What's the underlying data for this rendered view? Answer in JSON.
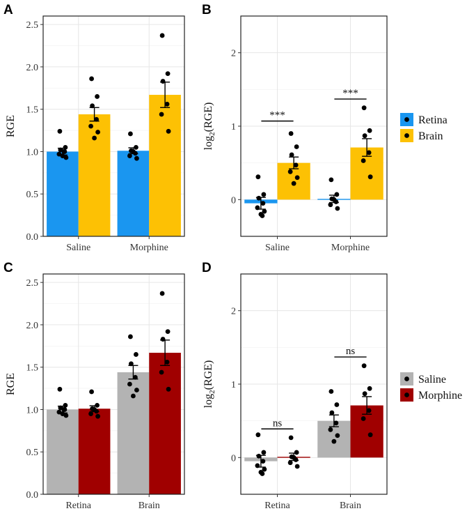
{
  "panel_labels": [
    "A",
    "B",
    "C",
    "D"
  ],
  "legend_group": [
    {
      "name": "Retina",
      "color": "#1a96f0"
    },
    {
      "name": "Brain",
      "color": "#fdc104"
    }
  ],
  "legend_treatment": [
    {
      "name": "Saline",
      "color": "#b3b3b3"
    },
    {
      "name": "Morphine",
      "color": "#a00000"
    }
  ],
  "chart_data": [
    {
      "panel": "A",
      "type": "bar",
      "ylabel": "RGE",
      "ylabel_sub": "",
      "ylim": [
        0,
        2.6
      ],
      "yticks": [
        0,
        0.5,
        1,
        1.5,
        2,
        2.5
      ],
      "ytick_labels": [
        "0.0",
        "0.5",
        "1.0",
        "1.5",
        "2.0",
        "2.5"
      ],
      "categories": [
        "Saline",
        "Morphine"
      ],
      "series": [
        {
          "name": "Retina",
          "color": "#1a96f0",
          "values": [
            1.0,
            1.01
          ],
          "se": [
            0.04,
            0.035
          ],
          "points": [
            [
              1.24,
              1.05,
              1.02,
              1.0,
              0.97,
              0.93,
              0.95,
              1.0
            ],
            [
              1.21,
              1.05,
              1.01,
              0.98,
              0.95,
              0.92,
              1.0
            ]
          ]
        },
        {
          "name": "Brain",
          "color": "#fdc104",
          "values": [
            1.44,
            1.67
          ],
          "se": [
            0.08,
            0.15
          ],
          "points": [
            [
              1.86,
              1.65,
              1.54,
              1.38,
              1.3,
              1.23,
              1.16
            ],
            [
              2.37,
              1.92,
              1.83,
              1.56,
              1.44,
              1.24
            ]
          ]
        }
      ],
      "significance": []
    },
    {
      "panel": "B",
      "type": "bar",
      "ylabel": "log",
      "ylabel_sub": "2",
      "ylabel_rest": "(RGE)",
      "ylim": [
        -0.5,
        2.5
      ],
      "yticks": [
        0,
        1,
        2
      ],
      "ytick_labels": [
        "0",
        "1",
        "2"
      ],
      "categories": [
        "Saline",
        "Morphine"
      ],
      "series": [
        {
          "name": "Retina",
          "color": "#1a96f0",
          "values": [
            -0.05,
            0.01
          ],
          "se": [
            0.08,
            0.05
          ],
          "points": [
            [
              0.31,
              0.07,
              0.02,
              -0.05,
              -0.11,
              -0.16,
              -0.2,
              -0.22
            ],
            [
              0.27,
              0.07,
              0.01,
              -0.03,
              -0.07,
              -0.12,
              0.0
            ]
          ]
        },
        {
          "name": "Brain",
          "color": "#fdc104",
          "values": [
            0.5,
            0.71
          ],
          "se": [
            0.08,
            0.12
          ],
          "points": [
            [
              0.9,
              0.72,
              0.61,
              0.47,
              0.38,
              0.3,
              0.22
            ],
            [
              1.25,
              0.94,
              0.87,
              0.64,
              0.53,
              0.31
            ]
          ]
        }
      ],
      "significance": [
        {
          "category": "Saline",
          "label": "***",
          "y": 1.07
        },
        {
          "category": "Morphine",
          "label": "***",
          "y": 1.37
        }
      ]
    },
    {
      "panel": "C",
      "type": "bar",
      "ylabel": "RGE",
      "ylabel_sub": "",
      "ylim": [
        0,
        2.6
      ],
      "yticks": [
        0,
        0.5,
        1,
        1.5,
        2,
        2.5
      ],
      "ytick_labels": [
        "0.0",
        "0.5",
        "1.0",
        "1.5",
        "2.0",
        "2.5"
      ],
      "categories": [
        "Retina",
        "Brain"
      ],
      "series": [
        {
          "name": "Saline",
          "color": "#b3b3b3",
          "values": [
            1.0,
            1.44
          ],
          "se": [
            0.04,
            0.08
          ],
          "points": [
            [
              1.24,
              1.05,
              1.02,
              1.0,
              0.97,
              0.93,
              0.95,
              1.0
            ],
            [
              1.86,
              1.65,
              1.54,
              1.38,
              1.3,
              1.23,
              1.16
            ]
          ]
        },
        {
          "name": "Morphine",
          "color": "#a00000",
          "values": [
            1.01,
            1.67
          ],
          "se": [
            0.035,
            0.15
          ],
          "points": [
            [
              1.21,
              1.05,
              1.01,
              0.98,
              0.95,
              0.92,
              1.0
            ],
            [
              2.37,
              1.92,
              1.83,
              1.56,
              1.44,
              1.24
            ]
          ]
        }
      ],
      "significance": []
    },
    {
      "panel": "D",
      "type": "bar",
      "ylabel": "log",
      "ylabel_sub": "2",
      "ylabel_rest": "(RGE)",
      "ylim": [
        -0.5,
        2.5
      ],
      "yticks": [
        0,
        1,
        2
      ],
      "ytick_labels": [
        "0",
        "1",
        "2"
      ],
      "categories": [
        "Retina",
        "Brain"
      ],
      "series": [
        {
          "name": "Saline",
          "color": "#b3b3b3",
          "values": [
            -0.05,
            0.5
          ],
          "se": [
            0.08,
            0.08
          ],
          "points": [
            [
              0.31,
              0.07,
              0.02,
              -0.05,
              -0.11,
              -0.16,
              -0.2,
              -0.22
            ],
            [
              0.9,
              0.72,
              0.61,
              0.47,
              0.38,
              0.3,
              0.22
            ]
          ]
        },
        {
          "name": "Morphine",
          "color": "#a00000",
          "values": [
            0.01,
            0.71
          ],
          "se": [
            0.05,
            0.12
          ],
          "points": [
            [
              0.27,
              0.07,
              0.01,
              -0.03,
              -0.07,
              -0.12,
              0.0
            ],
            [
              1.25,
              0.94,
              0.87,
              0.64,
              0.53,
              0.31
            ]
          ]
        }
      ],
      "significance": [
        {
          "category": "Retina",
          "label": "ns",
          "y": 0.39
        },
        {
          "category": "Brain",
          "label": "ns",
          "y": 1.37
        }
      ]
    }
  ]
}
